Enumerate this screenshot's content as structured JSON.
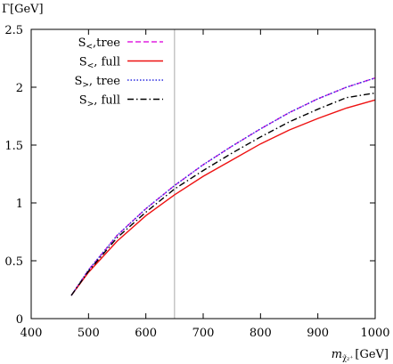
{
  "chart_data": {
    "type": "line",
    "ylabel": "Γ[GeV]",
    "xlabel": {
      "base": "m",
      "sub": "χ̃₂⁺",
      "unit": "[GeV]"
    },
    "xlim": [
      400,
      1000
    ],
    "ylim": [
      0,
      2.5
    ],
    "xticks": [
      400,
      500,
      600,
      700,
      800,
      900,
      1000
    ],
    "yticks": [
      0,
      0.5,
      1,
      1.5,
      2,
      2.5
    ],
    "xtick_labels": [
      "400",
      "500",
      "600",
      "700",
      "800",
      "900",
      "1000"
    ],
    "ytick_labels": [
      "0",
      "0.5",
      "1",
      "1.5",
      "2",
      "2.5"
    ],
    "grid": false,
    "legend_position": "top-left",
    "vertical_line": {
      "x": 650,
      "color": "#aaaaaa"
    },
    "series": [
      {
        "name": "S<,tree",
        "legend": {
          "main": "S",
          "sub": "<",
          "rest": ",tree"
        },
        "color": "#e020e0",
        "dash": "6,3",
        "x": [
          470,
          500,
          550,
          600,
          650,
          700,
          750,
          800,
          850,
          900,
          950,
          1000
        ],
        "values": [
          0.2,
          0.42,
          0.72,
          0.95,
          1.15,
          1.33,
          1.49,
          1.64,
          1.78,
          1.9,
          2.0,
          2.08
        ]
      },
      {
        "name": "S<, full",
        "legend": {
          "main": "S",
          "sub": "<",
          "rest": ", full"
        },
        "color": "#ee1111",
        "dash": "",
        "x": [
          470,
          500,
          550,
          600,
          650,
          700,
          750,
          800,
          850,
          900,
          950,
          1000
        ],
        "values": [
          0.2,
          0.4,
          0.67,
          0.89,
          1.07,
          1.23,
          1.37,
          1.51,
          1.63,
          1.73,
          1.82,
          1.89
        ]
      },
      {
        "name": "S>, tree",
        "legend": {
          "main": "S",
          "sub": ">",
          "rest": ", tree"
        },
        "color": "#2a2ae0",
        "dash": "1.5,2",
        "x": [
          470,
          500,
          550,
          600,
          650,
          700,
          750,
          800,
          850,
          900,
          950,
          1000
        ],
        "values": [
          0.2,
          0.42,
          0.72,
          0.95,
          1.15,
          1.33,
          1.49,
          1.64,
          1.78,
          1.9,
          2.0,
          2.08
        ]
      },
      {
        "name": "S>, full",
        "legend": {
          "main": "S",
          "sub": ">",
          "rest": ", full"
        },
        "color": "#000000",
        "dash": "7,3,1.5,3",
        "x": [
          470,
          500,
          550,
          600,
          650,
          700,
          750,
          800,
          850,
          900,
          950,
          1000
        ],
        "values": [
          0.2,
          0.41,
          0.7,
          0.92,
          1.12,
          1.28,
          1.43,
          1.57,
          1.7,
          1.81,
          1.91,
          1.95
        ]
      }
    ]
  }
}
